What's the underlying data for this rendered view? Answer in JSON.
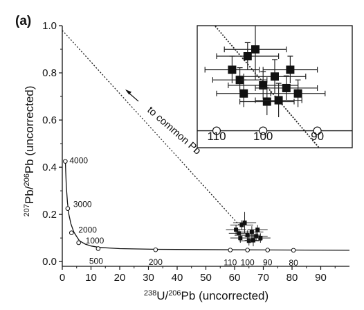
{
  "chart_data": {
    "type": "scatter",
    "panel_label": "(a)",
    "xlabel": {
      "iso1": "238",
      "mid": "U/",
      "iso2": "206",
      "tail": "Pb (uncorrected)"
    },
    "ylabel": {
      "iso1": "207",
      "mid": "Pb/",
      "iso2": "206",
      "tail": "Pb  (uncorrected)"
    },
    "xlim": [
      0,
      100
    ],
    "ylim": [
      -0.02,
      1.0
    ],
    "x_ticks": [
      0,
      10,
      20,
      30,
      40,
      50,
      60,
      70,
      80,
      90
    ],
    "x_tick_labels": [
      "0",
      "10",
      "20",
      "30",
      "40",
      "50",
      "60",
      "70",
      "80",
      "90"
    ],
    "y_ticks": [
      0.0,
      0.2,
      0.4,
      0.6,
      0.8,
      1.0
    ],
    "y_tick_labels": [
      "0.0",
      "0.2",
      "0.4",
      "0.6",
      "0.8",
      "1.0"
    ],
    "concordia": {
      "curve": [
        [
          1.05,
          0.43
        ],
        [
          1.2,
          0.38
        ],
        [
          1.4,
          0.32
        ],
        [
          1.8,
          0.25
        ],
        [
          2.3,
          0.2
        ],
        [
          3,
          0.16
        ],
        [
          4,
          0.126
        ],
        [
          5,
          0.106
        ],
        [
          6,
          0.088
        ],
        [
          8,
          0.074
        ],
        [
          10,
          0.066
        ],
        [
          13,
          0.06
        ],
        [
          20,
          0.055
        ],
        [
          33,
          0.052
        ],
        [
          60,
          0.05
        ],
        [
          100,
          0.048
        ]
      ],
      "age_markers": [
        {
          "x": 1.05,
          "y": 0.425,
          "label": "4000"
        },
        {
          "x": 1.9,
          "y": 0.225,
          "label": "3000"
        },
        {
          "x": 3.2,
          "y": 0.122,
          "label": "2000"
        },
        {
          "x": 5.7,
          "y": 0.08,
          "label": "1000"
        },
        {
          "x": 12.5,
          "y": 0.055,
          "label": "500"
        },
        {
          "x": 32.5,
          "y": 0.05,
          "label": "200"
        },
        {
          "x": 58.5,
          "y": 0.049,
          "label": "110"
        },
        {
          "x": 64.5,
          "y": 0.049,
          "label": "100"
        },
        {
          "x": 71.5,
          "y": 0.049,
          "label": "90"
        },
        {
          "x": 80.5,
          "y": 0.048,
          "label": "80"
        }
      ]
    },
    "common_pb_line": {
      "x": [
        0,
        62
      ],
      "y": [
        0.98,
        0.15
      ],
      "label": "to common Pb"
    },
    "data_points": [
      {
        "x": 60.5,
        "y": 0.135,
        "xerr": 3.5,
        "yerr": 0.02
      },
      {
        "x": 62.5,
        "y": 0.155,
        "xerr": 4,
        "yerr": 0.02
      },
      {
        "x": 61.5,
        "y": 0.12,
        "xerr": 3.5,
        "yerr": 0.018
      },
      {
        "x": 64.5,
        "y": 0.112,
        "xerr": 4.5,
        "yerr": 0.02
      },
      {
        "x": 66,
        "y": 0.125,
        "xerr": 4,
        "yerr": 0.025
      },
      {
        "x": 67.5,
        "y": 0.108,
        "xerr": 4,
        "yerr": 0.018
      },
      {
        "x": 68,
        "y": 0.135,
        "xerr": 3.5,
        "yerr": 0.02
      },
      {
        "x": 62,
        "y": 0.1,
        "xerr": 3.5,
        "yerr": 0.02
      },
      {
        "x": 65,
        "y": 0.088,
        "xerr": 3.5,
        "yerr": 0.02
      },
      {
        "x": 69,
        "y": 0.1,
        "xerr": 3.5,
        "yerr": 0.02
      },
      {
        "x": 63.5,
        "y": 0.165,
        "xerr": 4,
        "yerr": 0.045
      },
      {
        "x": 66.5,
        "y": 0.09,
        "xerr": 3,
        "yerr": 0.025
      }
    ],
    "inset": {
      "x_labels": [
        "110",
        "100",
        "90"
      ],
      "concordia_y": 0.045,
      "xlim": [
        56,
        76
      ],
      "ylim": [
        0.02,
        0.2
      ],
      "markers_x": [
        58.5,
        64.5,
        71.5
      ]
    }
  }
}
